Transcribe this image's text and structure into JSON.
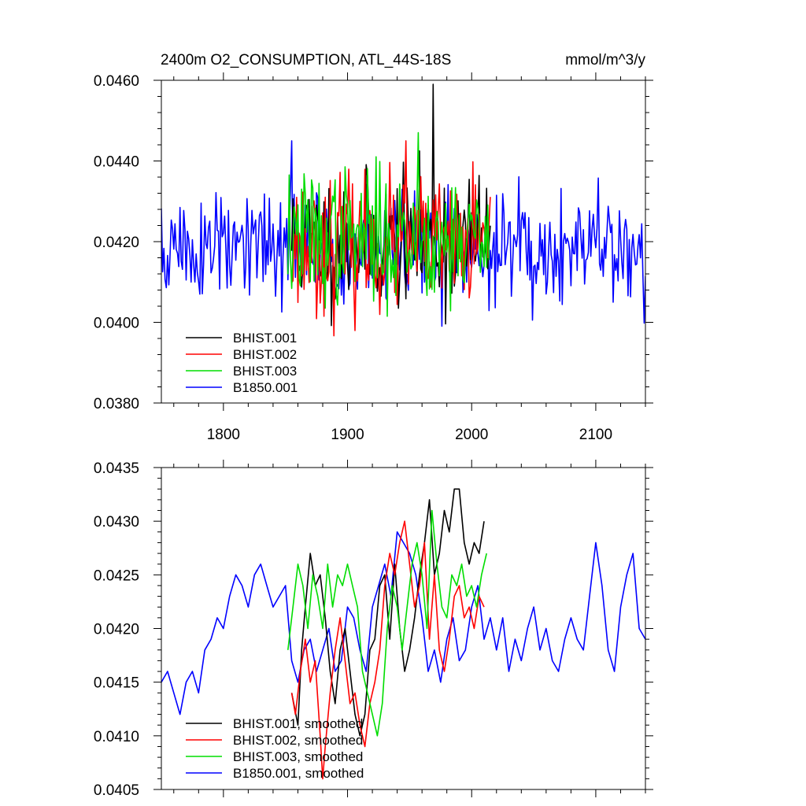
{
  "chart_data": [
    {
      "type": "line",
      "title": "2400m O2_CONSUMPTION, ATL_44S-18S",
      "units": "mmol/m^3/y",
      "xlim": [
        1750,
        2140
      ],
      "ylim": [
        0.038,
        0.046
      ],
      "xticks": [
        1800,
        1900,
        2000,
        2100
      ],
      "xtick_labels": [
        "1800",
        "1900",
        "2000",
        "2100"
      ],
      "yticks": [
        0.038,
        0.04,
        0.042,
        0.044,
        0.046
      ],
      "ytick_labels": [
        "0.0380",
        "0.0400",
        "0.0420",
        "0.0440",
        "0.0460"
      ],
      "legend_position": "bottom-left",
      "series": [
        {
          "name": "BHIST.001",
          "color": "#000000",
          "x_range": [
            1855,
            2015
          ],
          "mean": 0.042,
          "amplitude": 0.0011,
          "peak": [
            1969,
            0.0459
          ],
          "seed": 11
        },
        {
          "name": "BHIST.002",
          "color": "#ff0000",
          "x_range": [
            1855,
            2015
          ],
          "mean": 0.0419,
          "amplitude": 0.0011,
          "peak": [
            1947,
            0.0445
          ],
          "seed": 23
        },
        {
          "name": "BHIST.003",
          "color": "#00dd00",
          "x_range": [
            1852,
            2014
          ],
          "mean": 0.0421,
          "amplitude": 0.0011,
          "peak": [
            1957,
            0.0447
          ],
          "seed": 37
        },
        {
          "name": "B1850.001",
          "color": "#0000ff",
          "x_range": [
            1750,
            2140
          ],
          "mean": 0.0418,
          "amplitude": 0.001,
          "peak": [
            1855,
            0.0445
          ],
          "seed": 51
        }
      ]
    },
    {
      "type": "line",
      "xlim": [
        1750,
        2140
      ],
      "ylim": [
        0.0405,
        0.0435
      ],
      "xticks": [
        1800,
        1900,
        2000,
        2100
      ],
      "yticks": [
        0.0405,
        0.041,
        0.0415,
        0.042,
        0.0425,
        0.043,
        0.0435
      ],
      "ytick_labels": [
        "0.0405",
        "0.0410",
        "0.0415",
        "0.0420",
        "0.0425",
        "0.0430",
        "0.0435"
      ],
      "legend_position": "bottom-left",
      "series": [
        {
          "name": "BHIST.001, smoothed",
          "color": "#000000",
          "x": [
            1855,
            1860,
            1863,
            1866,
            1870,
            1874,
            1878,
            1882,
            1886,
            1890,
            1894,
            1898,
            1902,
            1906,
            1910,
            1914,
            1918,
            1922,
            1926,
            1930,
            1934,
            1938,
            1942,
            1946,
            1950,
            1954,
            1958,
            1962,
            1966,
            1970,
            1974,
            1978,
            1982,
            1986,
            1990,
            1994,
            1998,
            2002,
            2006,
            2010
          ],
          "y": [
            0.0414,
            0.0411,
            0.0418,
            0.0422,
            0.0427,
            0.0424,
            0.0425,
            0.0421,
            0.0416,
            0.0413,
            0.0418,
            0.042,
            0.0416,
            0.0412,
            0.041,
            0.0412,
            0.0418,
            0.0419,
            0.0424,
            0.0425,
            0.0419,
            0.0426,
            0.042,
            0.0416,
            0.0418,
            0.0421,
            0.0425,
            0.0428,
            0.0432,
            0.0425,
            0.0427,
            0.0431,
            0.0429,
            0.0433,
            0.0433,
            0.0428,
            0.0426,
            0.0428,
            0.0427,
            0.043
          ]
        },
        {
          "name": "BHIST.002, smoothed",
          "color": "#ff0000",
          "x": [
            1855,
            1858,
            1862,
            1866,
            1870,
            1874,
            1878,
            1880,
            1882,
            1886,
            1890,
            1894,
            1898,
            1902,
            1906,
            1910,
            1914,
            1918,
            1922,
            1926,
            1930,
            1934,
            1938,
            1942,
            1946,
            1950,
            1954,
            1958,
            1962,
            1966,
            1970,
            1974,
            1978,
            1982,
            1986,
            1990,
            1994,
            1998,
            2002,
            2006,
            2010
          ],
          "y": [
            0.0414,
            0.0412,
            0.0416,
            0.0419,
            0.0415,
            0.0417,
            0.041,
            0.0406,
            0.0409,
            0.0414,
            0.0418,
            0.0421,
            0.0417,
            0.0413,
            0.0414,
            0.0411,
            0.0409,
            0.0413,
            0.0415,
            0.0418,
            0.0424,
            0.0427,
            0.0425,
            0.0428,
            0.043,
            0.0426,
            0.0422,
            0.0424,
            0.0428,
            0.0419,
            0.0425,
            0.0418,
            0.0416,
            0.0419,
            0.0423,
            0.0424,
            0.0421,
            0.0422,
            0.042,
            0.0423,
            0.0422
          ]
        },
        {
          "name": "BHIST.003, smoothed",
          "color": "#00dd00",
          "x": [
            1852,
            1856,
            1860,
            1864,
            1868,
            1872,
            1876,
            1880,
            1884,
            1888,
            1892,
            1896,
            1900,
            1904,
            1908,
            1912,
            1916,
            1920,
            1924,
            1928,
            1932,
            1936,
            1940,
            1944,
            1948,
            1952,
            1956,
            1960,
            1964,
            1968,
            1972,
            1976,
            1980,
            1984,
            1988,
            1992,
            1996,
            2000,
            2004,
            2008,
            2012
          ],
          "y": [
            0.0418,
            0.0422,
            0.0426,
            0.0424,
            0.042,
            0.0425,
            0.0423,
            0.042,
            0.0426,
            0.0422,
            0.0425,
            0.0424,
            0.0426,
            0.0424,
            0.0422,
            0.0416,
            0.0414,
            0.0412,
            0.041,
            0.0413,
            0.042,
            0.0424,
            0.0422,
            0.0418,
            0.0422,
            0.0426,
            0.0428,
            0.0425,
            0.042,
            0.0431,
            0.0426,
            0.0422,
            0.0421,
            0.0425,
            0.0424,
            0.0426,
            0.0423,
            0.0424,
            0.0422,
            0.0425,
            0.0427
          ]
        },
        {
          "name": "B1850.001, smoothed",
          "color": "#0000ff",
          "x": [
            1750,
            1755,
            1760,
            1765,
            1770,
            1775,
            1780,
            1785,
            1790,
            1795,
            1800,
            1805,
            1810,
            1815,
            1820,
            1825,
            1830,
            1835,
            1840,
            1845,
            1850,
            1855,
            1860,
            1865,
            1870,
            1875,
            1880,
            1885,
            1890,
            1895,
            1900,
            1905,
            1910,
            1915,
            1920,
            1925,
            1930,
            1935,
            1940,
            1945,
            1950,
            1955,
            1960,
            1965,
            1970,
            1975,
            1980,
            1985,
            1990,
            1995,
            2000,
            2005,
            2010,
            2015,
            2020,
            2025,
            2030,
            2035,
            2040,
            2045,
            2050,
            2055,
            2060,
            2065,
            2070,
            2075,
            2080,
            2085,
            2090,
            2095,
            2100,
            2105,
            2110,
            2115,
            2120,
            2125,
            2130,
            2135,
            2140
          ],
          "y": [
            0.0415,
            0.0416,
            0.0414,
            0.0412,
            0.0415,
            0.0416,
            0.0414,
            0.0418,
            0.0419,
            0.0421,
            0.042,
            0.0423,
            0.0425,
            0.0424,
            0.0422,
            0.0425,
            0.0426,
            0.0424,
            0.0422,
            0.0423,
            0.0424,
            0.0417,
            0.0415,
            0.0418,
            0.0419,
            0.0416,
            0.0418,
            0.042,
            0.0416,
            0.0417,
            0.0422,
            0.0421,
            0.0418,
            0.0416,
            0.0422,
            0.0424,
            0.0426,
            0.0423,
            0.0429,
            0.0428,
            0.0427,
            0.0425,
            0.0421,
            0.0416,
            0.0418,
            0.0415,
            0.0419,
            0.0421,
            0.0417,
            0.0418,
            0.0422,
            0.0424,
            0.0419,
            0.0421,
            0.0418,
            0.0421,
            0.0416,
            0.0419,
            0.0417,
            0.042,
            0.0422,
            0.0418,
            0.042,
            0.0417,
            0.0416,
            0.0419,
            0.0421,
            0.0419,
            0.0418,
            0.0423,
            0.0428,
            0.0424,
            0.0418,
            0.0416,
            0.0422,
            0.0425,
            0.0427,
            0.042,
            0.0419
          ]
        }
      ]
    }
  ]
}
